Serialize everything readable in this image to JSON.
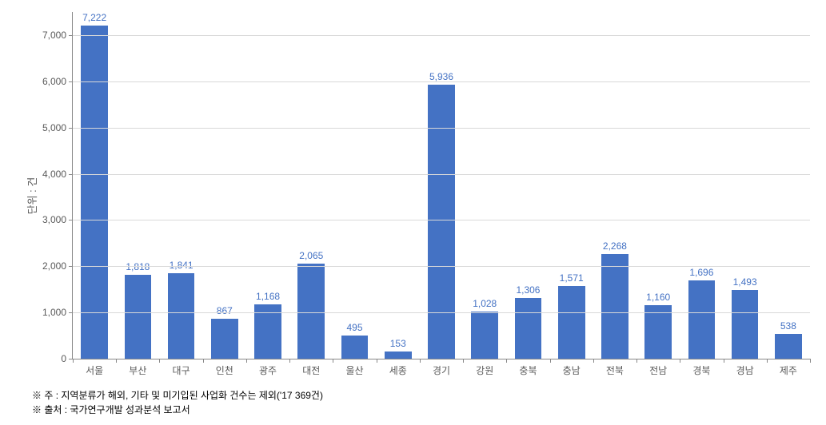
{
  "chart": {
    "type": "bar",
    "y_axis_label": "단위 : 건",
    "ylim": [
      0,
      7500
    ],
    "yticks": [
      0,
      1000,
      2000,
      3000,
      4000,
      5000,
      6000,
      7000
    ],
    "ytick_labels": [
      "0",
      "1,000",
      "2,000",
      "3,000",
      "4,000",
      "5,000",
      "6,000",
      "7,000"
    ],
    "categories": [
      "서울",
      "부산",
      "대구",
      "인천",
      "광주",
      "대전",
      "울산",
      "세종",
      "경기",
      "강원",
      "충북",
      "충남",
      "전북",
      "전남",
      "경북",
      "경남",
      "제주"
    ],
    "values": [
      7222,
      1818,
      1841,
      867,
      1168,
      2065,
      495,
      153,
      5936,
      1028,
      1306,
      1571,
      2268,
      1160,
      1696,
      1493,
      538
    ],
    "value_labels": [
      "7,222",
      "1,818",
      "1,841",
      "867",
      "1,168",
      "2,065",
      "495",
      "153",
      "5,936",
      "1,028",
      "1,306",
      "1,571",
      "2,268",
      "1,160",
      "1,696",
      "1,493",
      "538"
    ],
    "bar_color": "#4472c4",
    "value_label_color": "#4472c4",
    "grid_color": "#d9d9d9",
    "axis_color": "#888888",
    "tick_label_color": "#595959",
    "tick_fontsize": 12,
    "axis_label_fontsize": 13,
    "background_color": "#ffffff",
    "bar_width": 0.62
  },
  "footnotes": {
    "note1": "※ 주 : 지역분류가 해외, 기타 및 미기입된 사업화 건수는 제외('17 369건)",
    "note2": "※ 출처 : 국가연구개발 성과분석 보고서"
  }
}
